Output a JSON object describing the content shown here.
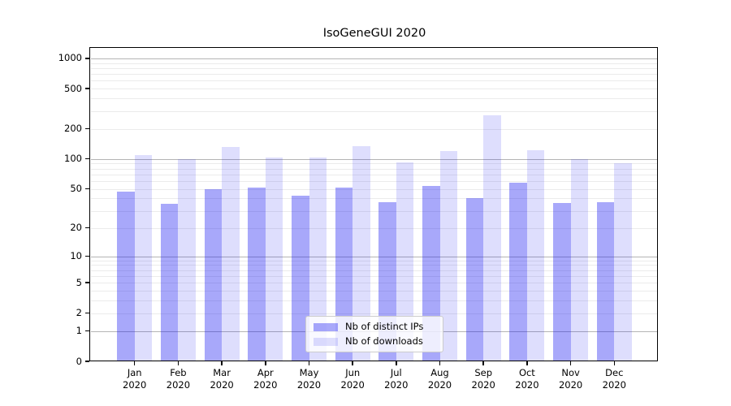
{
  "title": "IsoGeneGUI 2020",
  "legend": {
    "items": [
      {
        "label": "Nb of distinct IPs"
      },
      {
        "label": "Nb of downloads"
      }
    ],
    "position": "lower center"
  },
  "colors": {
    "distinct_ips_bar": "rgba(25,25,242,0.38)",
    "downloads_bar": "rgba(25,25,242,0.145)",
    "major_gridline": "#b4b4b4",
    "minor_gridline": "#ebebeb",
    "axis": "#000000",
    "legend_border": "#cccccc"
  },
  "chart_data": {
    "type": "bar",
    "title": "IsoGeneGUI 2020",
    "categories": [
      "Jan",
      "Feb",
      "Mar",
      "Apr",
      "May",
      "Jun",
      "Jul",
      "Aug",
      "Sep",
      "Oct",
      "Nov",
      "Dec"
    ],
    "category_year": "2020",
    "series": [
      {
        "name": "Nb of distinct IPs",
        "values": [
          47,
          35,
          50,
          52,
          43,
          52,
          37,
          54,
          40,
          58,
          36,
          37
        ]
      },
      {
        "name": "Nb of downloads",
        "values": [
          110,
          100,
          132,
          104,
          103,
          133,
          93,
          120,
          272,
          123,
          100,
          90
        ]
      }
    ],
    "xlabel": "",
    "ylabel": "",
    "yscale": "log10(value+1)",
    "ylim": [
      0,
      1244
    ],
    "y_ticks": [
      0,
      1,
      2,
      5,
      10,
      20,
      50,
      100,
      200,
      500,
      1000
    ],
    "major_grid_values": [
      1,
      10,
      100,
      1000
    ],
    "grid": "horizontal major+minor",
    "legend_position": "lower center"
  }
}
